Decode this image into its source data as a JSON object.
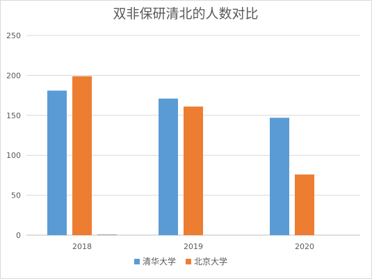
{
  "chart_data": {
    "type": "bar",
    "title": "双非保研清北的人数对比",
    "categories": [
      "2018",
      "2019",
      "2020"
    ],
    "series": [
      {
        "name": "清华大学",
        "color": "#5b9bd5",
        "values": [
          181,
          171,
          147
        ]
      },
      {
        "name": "北京大学",
        "color": "#ed7d31",
        "values": [
          199,
          161,
          76
        ]
      },
      {
        "name": "",
        "color": "#a5a5a5",
        "values": [
          1,
          0,
          0
        ]
      }
    ],
    "ylim": [
      0,
      250
    ],
    "yticks": [
      "0",
      "50",
      "100",
      "150",
      "200",
      "250"
    ],
    "xlabel": "",
    "ylabel": "",
    "grid": true,
    "legend_position": "bottom"
  }
}
